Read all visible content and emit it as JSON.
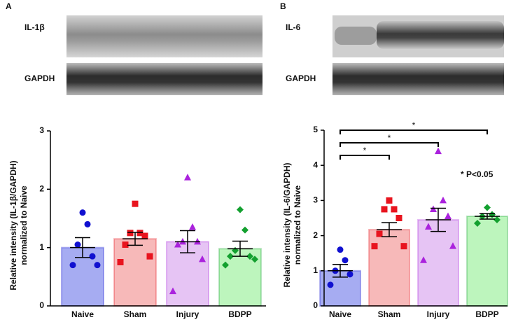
{
  "chart_data": [
    {
      "type": "bar",
      "panel": "A",
      "blot_labels": [
        "IL-1β",
        "GAPDH"
      ],
      "ylabel": [
        "Relative intensity (IL-1β/GAPDH)",
        "normalized to Naive"
      ],
      "categories": [
        "Naive",
        "Sham",
        "Injury",
        "BDPP"
      ],
      "values": [
        1.0,
        1.15,
        1.1,
        0.98
      ],
      "errors": [
        0.17,
        0.11,
        0.19,
        0.13
      ],
      "points": [
        [
          1.6,
          1.4,
          1.05,
          0.85,
          0.7,
          0.7
        ],
        [
          1.75,
          1.25,
          1.25,
          1.2,
          1.05,
          0.85,
          0.75
        ],
        [
          2.2,
          1.35,
          1.1,
          1.1,
          1.05,
          0.8,
          0.25
        ],
        [
          1.65,
          1.3,
          0.95,
          0.85,
          0.85,
          0.8,
          0.7
        ]
      ],
      "colors": [
        "#1010d0",
        "#e8141e",
        "#aa22dd",
        "#13a02f"
      ],
      "bar_colors": [
        "#a6acf2",
        "#f7b9b9",
        "#e6c4f4",
        "#bdf5bd"
      ],
      "markers": [
        "circle",
        "square",
        "triangle",
        "diamond"
      ],
      "ylim": [
        0,
        3
      ],
      "yticks": [
        0,
        1,
        2,
        3
      ]
    },
    {
      "type": "bar",
      "panel": "B",
      "blot_labels": [
        "IL-6",
        "GAPDH"
      ],
      "ylabel": [
        "Relative intensity (IL-6/GAPDH)",
        "normalized to Naive"
      ],
      "categories": [
        "Naive",
        "Sham",
        "Injury",
        "BDPP"
      ],
      "values": [
        1.0,
        2.17,
        2.45,
        2.55
      ],
      "errors": [
        0.18,
        0.2,
        0.33,
        0.08
      ],
      "points": [
        [
          1.6,
          1.3,
          1.0,
          0.9,
          0.6
        ],
        [
          3.0,
          2.75,
          2.75,
          2.5,
          2.05,
          1.7,
          1.7
        ],
        [
          4.4,
          3.0,
          2.75,
          2.55,
          2.25,
          1.7,
          1.3
        ],
        [
          2.8,
          2.6,
          2.55,
          2.45,
          2.35
        ]
      ],
      "colors": [
        "#1010d0",
        "#e8141e",
        "#aa22dd",
        "#13a02f"
      ],
      "bar_colors": [
        "#a6acf2",
        "#f7b9b9",
        "#e6c4f4",
        "#bdf5bd"
      ],
      "markers": [
        "circle",
        "square",
        "triangle",
        "diamond"
      ],
      "ylim": [
        0,
        5
      ],
      "yticks": [
        0,
        1,
        2,
        3,
        4,
        5
      ],
      "pairs": [
        [
          "Naive",
          "Sham"
        ],
        [
          "Naive",
          "Injury"
        ],
        [
          "Naive",
          "BDPP"
        ]
      ],
      "pair_labels": [
        "*",
        "*",
        "*"
      ],
      "note": "* P<0.05"
    }
  ]
}
